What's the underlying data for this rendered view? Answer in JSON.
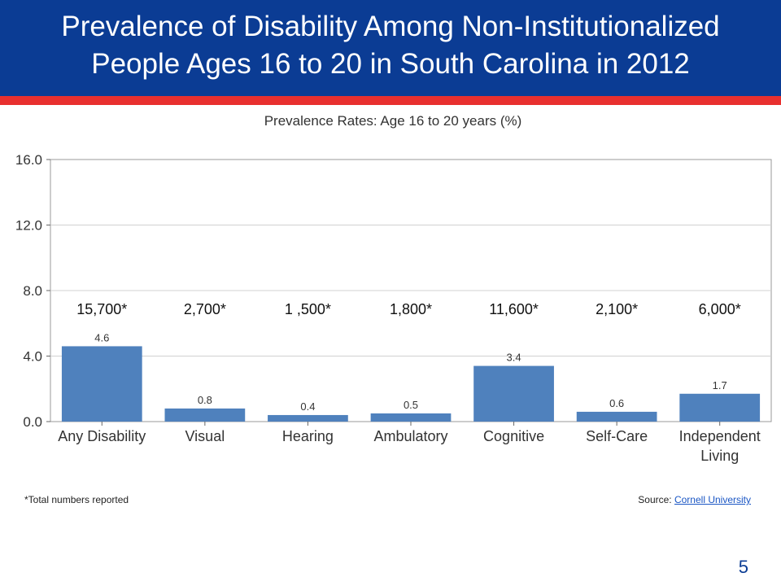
{
  "slide": {
    "title_line1": "Prevalence of Disability Among Non-Institutionalized",
    "title_line2": "People Ages 16 to 20 in South Carolina in 2012",
    "footnote": "*Total numbers reported",
    "source_label": "Source: ",
    "source_link": "Cornell University",
    "page_number": "5"
  },
  "colors": {
    "header": "#0b3c94",
    "stripe": "#e8302f",
    "bar": "#4f81bd"
  },
  "chart_data": {
    "type": "bar",
    "title": "Prevalence Rates: Age 16 to 20 years (%)",
    "xlabel": "",
    "ylabel": "",
    "categories": [
      [
        "Any Disability"
      ],
      [
        "Visual"
      ],
      [
        "Hearing"
      ],
      [
        "Ambulatory"
      ],
      [
        "Cognitive"
      ],
      [
        "Self-Care"
      ],
      [
        "Independent",
        "Living"
      ]
    ],
    "values": [
      4.6,
      0.8,
      0.4,
      0.5,
      3.4,
      0.6,
      1.7
    ],
    "data_labels": [
      "4.6",
      "0.8",
      "0.4",
      "0.5",
      "3.4",
      "0.6",
      "1.7"
    ],
    "totals": [
      "15,700*",
      "2,700*",
      "1 ,500*",
      "1,800*",
      "11,600*",
      "2,100*",
      "6,000*"
    ],
    "yticks": [
      "0.0",
      "4.0",
      "8.0",
      "12.0",
      "16.0"
    ],
    "ylim": [
      0,
      16
    ],
    "grid": true,
    "legend": "none"
  }
}
